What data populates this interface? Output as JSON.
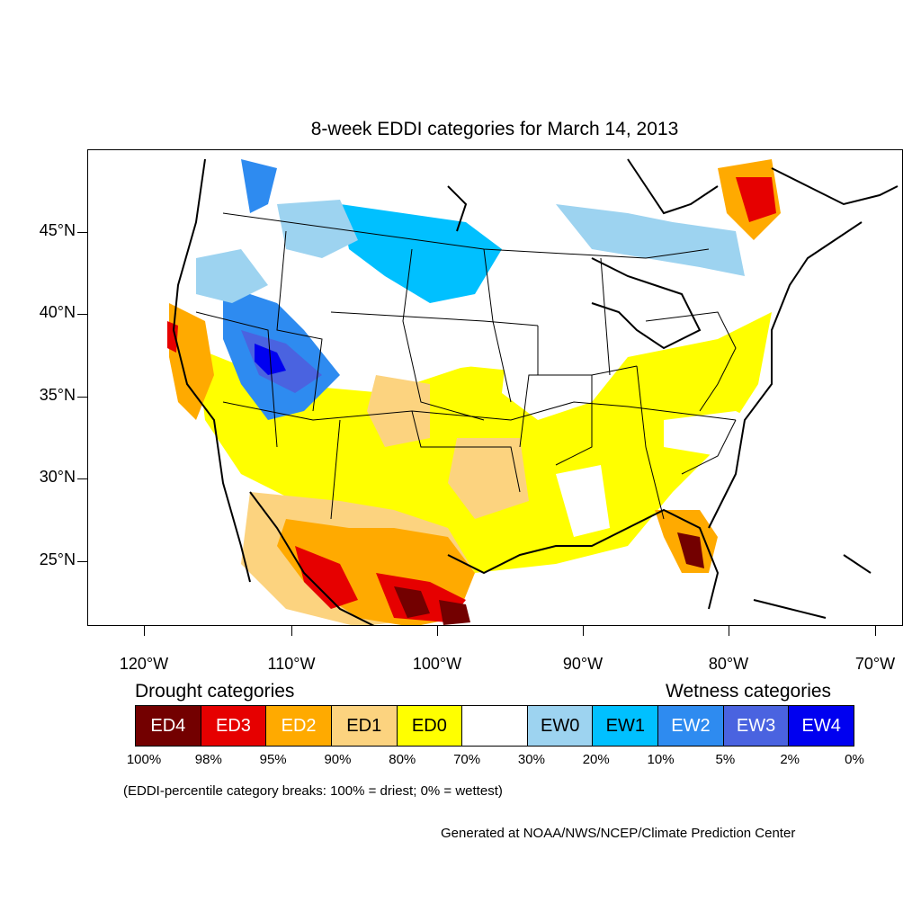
{
  "title": "8-week EDDI categories for March 14, 2013",
  "map": {
    "lat_labels": [
      "45°N",
      "40°N",
      "35°N",
      "30°N",
      "25°N"
    ],
    "lon_labels": [
      "120°W",
      "110°W",
      "100°W",
      "90°W",
      "80°W",
      "70°W"
    ]
  },
  "legend": {
    "drought_heading": "Drought categories",
    "wetness_heading": "Wetness categories",
    "categories": [
      {
        "label": "ED4",
        "color": "#730000",
        "text_color": "#ffffff"
      },
      {
        "label": "ED3",
        "color": "#e60000",
        "text_color": "#ffffff"
      },
      {
        "label": "ED2",
        "color": "#ffaa00",
        "text_color": "#ffffff"
      },
      {
        "label": "ED1",
        "color": "#fcd37f",
        "text_color": "#000000"
      },
      {
        "label": "ED0",
        "color": "#ffff00",
        "text_color": "#000000"
      },
      {
        "label": "",
        "color": "#ffffff",
        "text_color": "#000000"
      },
      {
        "label": "EW0",
        "color": "#9dd3f0",
        "text_color": "#000000"
      },
      {
        "label": "EW1",
        "color": "#00c0ff",
        "text_color": "#000000"
      },
      {
        "label": "EW2",
        "color": "#2e8bf0",
        "text_color": "#ffffff"
      },
      {
        "label": "EW3",
        "color": "#4a63e0",
        "text_color": "#ffffff"
      },
      {
        "label": "EW4",
        "color": "#0000f0",
        "text_color": "#ffffff"
      }
    ],
    "percentiles": [
      "100%",
      "98%",
      "95%",
      "90%",
      "80%",
      "70%",
      "30%",
      "20%",
      "10%",
      "5%",
      "2%",
      "0%"
    ]
  },
  "note": "(EDDI-percentile category breaks: 100% = driest; 0% = wettest)",
  "credit": "Generated at NOAA/NWS/NCEP/Climate Prediction Center"
}
